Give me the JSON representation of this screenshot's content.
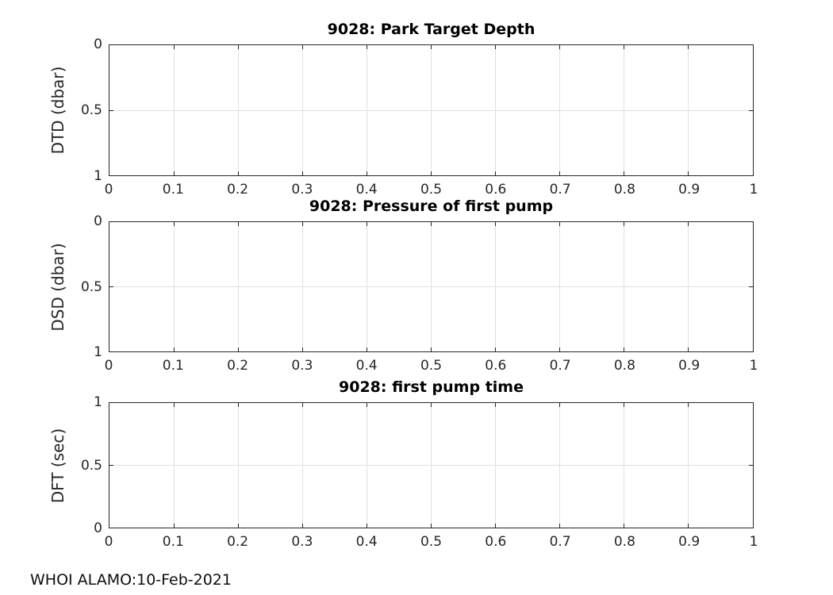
{
  "figure": {
    "background": "#ffffff",
    "footer": "WHOI ALAMO:10-Feb-2021"
  },
  "colors": {
    "axis": "#262626",
    "grid": "#e0e0e0",
    "title": "#000000",
    "plot_background": "#ffffff"
  },
  "subplots": [
    {
      "title": "9028: Park Target Depth",
      "ylabel": "DTD (dbar)",
      "xticks": [
        "0",
        "0.1",
        "0.2",
        "0.3",
        "0.4",
        "0.5",
        "0.6",
        "0.7",
        "0.8",
        "0.9",
        "1"
      ],
      "yticks": [
        "0",
        "0.5",
        "1"
      ]
    },
    {
      "title": "9028: Pressure of first pump",
      "ylabel": "DSD (dbar)",
      "xticks": [
        "0",
        "0.1",
        "0.2",
        "0.3",
        "0.4",
        "0.5",
        "0.6",
        "0.7",
        "0.8",
        "0.9",
        "1"
      ],
      "yticks": [
        "0",
        "0.5",
        "1"
      ]
    },
    {
      "title": "9028: first pump time",
      "ylabel": "DFT (sec)",
      "xticks": [
        "0",
        "0.1",
        "0.2",
        "0.3",
        "0.4",
        "0.5",
        "0.6",
        "0.7",
        "0.8",
        "0.9",
        "1"
      ],
      "yticks": [
        "1",
        "0.5",
        "0"
      ]
    }
  ],
  "chart_data": [
    {
      "type": "line",
      "title": "9028: Park Target Depth",
      "xlabel": "",
      "ylabel": "DTD (dbar)",
      "xlim": [
        0,
        1
      ],
      "ylim": [
        0,
        1
      ],
      "y_axis_direction": "reversed",
      "xticks": [
        0,
        0.1,
        0.2,
        0.3,
        0.4,
        0.5,
        0.6,
        0.7,
        0.8,
        0.9,
        1
      ],
      "yticks": [
        0,
        0.5,
        1
      ],
      "grid": true,
      "legend": false,
      "series": []
    },
    {
      "type": "line",
      "title": "9028: Pressure of first pump",
      "xlabel": "",
      "ylabel": "DSD (dbar)",
      "xlim": [
        0,
        1
      ],
      "ylim": [
        0,
        1
      ],
      "y_axis_direction": "reversed",
      "xticks": [
        0,
        0.1,
        0.2,
        0.3,
        0.4,
        0.5,
        0.6,
        0.7,
        0.8,
        0.9,
        1
      ],
      "yticks": [
        0,
        0.5,
        1
      ],
      "grid": true,
      "legend": false,
      "series": []
    },
    {
      "type": "line",
      "title": "9028: first pump time",
      "xlabel": "",
      "ylabel": "DFT (sec)",
      "xlim": [
        0,
        1
      ],
      "ylim": [
        0,
        1
      ],
      "y_axis_direction": "normal",
      "xticks": [
        0,
        0.1,
        0.2,
        0.3,
        0.4,
        0.5,
        0.6,
        0.7,
        0.8,
        0.9,
        1
      ],
      "yticks": [
        0,
        0.5,
        1
      ],
      "grid": true,
      "legend": false,
      "series": []
    }
  ]
}
